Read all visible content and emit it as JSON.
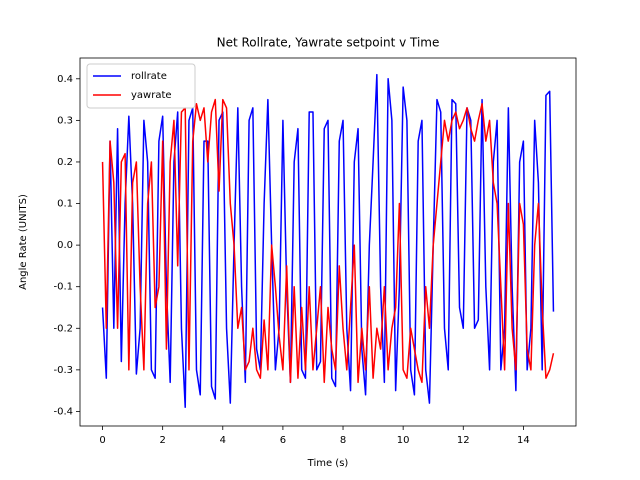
{
  "chart_data": {
    "type": "line",
    "title": "Net Rollrate, Yawrate setpoint v Time",
    "xlabel": "Time (s)",
    "ylabel": "Angle Rate (UNITS)",
    "x": [
      0,
      0.125,
      0.25,
      0.375,
      0.5,
      0.625,
      0.75,
      0.875,
      1,
      1.125,
      1.25,
      1.375,
      1.5,
      1.625,
      1.75,
      1.875,
      2,
      2.125,
      2.25,
      2.375,
      2.5,
      2.625,
      2.75,
      2.875,
      3,
      3.125,
      3.25,
      3.375,
      3.5,
      3.625,
      3.75,
      3.875,
      4,
      4.125,
      4.25,
      4.375,
      4.5,
      4.625,
      4.75,
      4.875,
      5,
      5.125,
      5.25,
      5.375,
      5.5,
      5.625,
      5.75,
      5.875,
      6,
      6.125,
      6.25,
      6.375,
      6.5,
      6.625,
      6.75,
      6.875,
      7,
      7.125,
      7.25,
      7.375,
      7.5,
      7.625,
      7.75,
      7.875,
      8,
      8.125,
      8.25,
      8.375,
      8.5,
      8.625,
      8.75,
      8.875,
      9,
      9.125,
      9.25,
      9.375,
      9.5,
      9.625,
      9.75,
      9.875,
      10,
      10.125,
      10.25,
      10.375,
      10.5,
      10.625,
      10.75,
      10.875,
      11,
      11.125,
      11.25,
      11.375,
      11.5,
      11.625,
      11.75,
      11.875,
      12,
      12.125,
      12.25,
      12.375,
      12.5,
      12.625,
      12.75,
      12.875,
      13,
      13.125,
      13.25,
      13.375,
      13.5,
      13.625,
      13.75,
      13.875,
      14,
      14.125,
      14.25,
      14.375,
      14.5,
      14.625,
      14.75,
      14.875,
      15
    ],
    "series": [
      {
        "name": "rollrate",
        "color": "#0000ff",
        "values": [
          -0.15,
          -0.32,
          0.25,
          -0.2,
          0.28,
          -0.28,
          0.1,
          0.31,
          0.1,
          -0.31,
          -0.2,
          0.3,
          0.2,
          -0.3,
          -0.32,
          0.25,
          0.31,
          -0.1,
          -0.33,
          0.2,
          0.32,
          -0.2,
          -0.39,
          0.3,
          0.33,
          -0.3,
          -0.36,
          0.25,
          0.25,
          -0.34,
          -0.37,
          0.3,
          0.32,
          -0.2,
          -0.38,
          0.0,
          0.33,
          -0.1,
          -0.33,
          0.3,
          0.33,
          -0.25,
          -0.3,
          0.1,
          0.35,
          0.0,
          -0.3,
          -0.2,
          0.3,
          -0.1,
          -0.33,
          0.2,
          0.28,
          -0.3,
          -0.32,
          0.32,
          0.32,
          -0.3,
          -0.28,
          0.28,
          0.3,
          -0.32,
          -0.34,
          0.25,
          0.3,
          -0.2,
          -0.35,
          0.2,
          0.28,
          -0.25,
          -0.36,
          0.0,
          0.2,
          0.41,
          -0.1,
          -0.33,
          0.4,
          0.3,
          -0.35,
          -0.1,
          0.38,
          0.3,
          -0.3,
          -0.36,
          0.25,
          0.3,
          -0.3,
          -0.38,
          0.0,
          0.35,
          0.32,
          -0.2,
          -0.3,
          0.35,
          0.34,
          -0.15,
          -0.2,
          0.33,
          0.3,
          -0.2,
          -0.18,
          0.35,
          -0.1,
          -0.3,
          0.2,
          0.3,
          -0.3,
          -0.2,
          0.33,
          -0.1,
          -0.35,
          0.2,
          0.25,
          -0.3,
          -0.2,
          0.3,
          0.15,
          -0.3,
          0.36,
          0.37,
          -0.16
        ]
      },
      {
        "name": "yawrate",
        "color": "#ff0000",
        "values": [
          0.2,
          -0.2,
          0.25,
          0.15,
          -0.2,
          0.2,
          0.22,
          -0.3,
          0.15,
          0.2,
          -0.1,
          -0.3,
          0.1,
          0.2,
          -0.15,
          -0.1,
          0.25,
          -0.25,
          0.2,
          0.3,
          -0.05,
          0.32,
          0.33,
          -0.3,
          0.25,
          0.34,
          0.3,
          0.33,
          0.2,
          0.32,
          0.35,
          0.13,
          0.35,
          0.33,
          0.1,
          0.0,
          -0.2,
          -0.15,
          -0.3,
          -0.28,
          -0.2,
          -0.3,
          -0.32,
          -0.18,
          -0.3,
          0.0,
          -0.1,
          -0.22,
          -0.3,
          -0.05,
          -0.33,
          -0.1,
          -0.32,
          -0.15,
          -0.3,
          -0.1,
          -0.3,
          -0.2,
          -0.1,
          -0.33,
          -0.15,
          -0.25,
          -0.3,
          -0.05,
          -0.2,
          -0.3,
          -0.15,
          0.0,
          -0.33,
          -0.2,
          -0.3,
          -0.1,
          -0.32,
          -0.2,
          -0.25,
          -0.1,
          -0.3,
          -0.2,
          -0.15,
          0.1,
          -0.3,
          -0.32,
          -0.2,
          -0.25,
          -0.3,
          -0.33,
          -0.1,
          -0.2,
          0.0,
          0.1,
          0.2,
          0.3,
          0.25,
          0.3,
          0.32,
          0.28,
          0.3,
          0.33,
          0.28,
          0.25,
          0.3,
          0.34,
          0.25,
          0.3,
          0.15,
          0.1,
          -0.1,
          -0.3,
          0.1,
          -0.2,
          -0.3,
          0.1,
          0.05,
          -0.25,
          -0.3,
          0.0,
          0.1,
          -0.15,
          -0.32,
          -0.3,
          -0.26
        ]
      }
    ],
    "xlim": [
      -0.75,
      15.75
    ],
    "ylim": [
      -0.435,
      0.45
    ],
    "xticks": [
      0,
      2,
      4,
      6,
      8,
      10,
      12,
      14
    ],
    "yticks": [
      -0.4,
      -0.3,
      -0.2,
      -0.1,
      {
        "value": 0,
        "label": "0.0"
      },
      0.1,
      0.2,
      0.3,
      0.4
    ],
    "legend": "upper left"
  }
}
